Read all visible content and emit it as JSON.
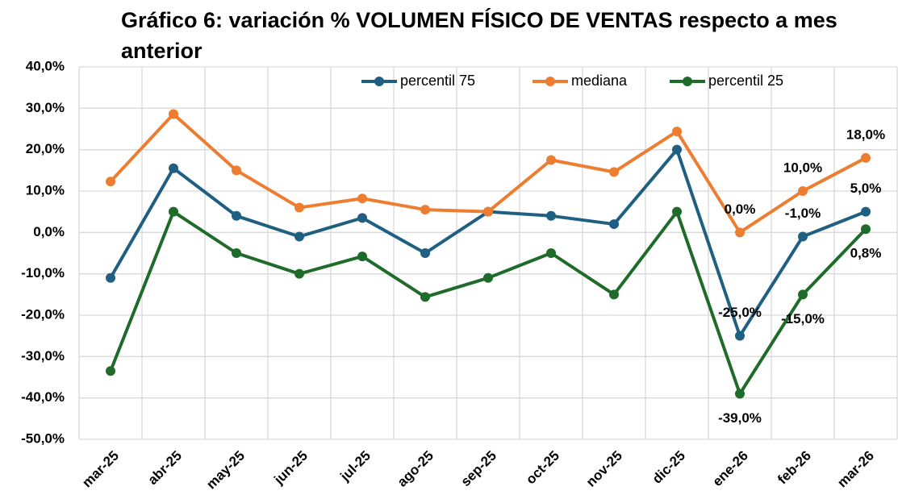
{
  "chart_data": {
    "type": "line",
    "title": "Gráfico 6: variación % VOLUMEN FÍSICO DE VENTAS respecto a mes anterior",
    "categories": [
      "mar-25",
      "abr-25",
      "may-25",
      "jun-25",
      "jul-25",
      "ago-25",
      "sep-25",
      "oct-25",
      "nov-25",
      "dic-25",
      "ene-26",
      "feb-26",
      "mar-26"
    ],
    "series": [
      {
        "name": "percentil 75",
        "color": "#1f5f82",
        "values": [
          -11,
          15.5,
          4,
          -1,
          3.5,
          -5,
          5,
          4,
          2,
          20,
          -25,
          -1,
          5
        ],
        "value_labels": [
          null,
          null,
          null,
          null,
          null,
          null,
          null,
          null,
          null,
          null,
          "-25,0%",
          "-1,0%",
          "5,0%"
        ]
      },
      {
        "name": "mediana",
        "color": "#ed7d31",
        "values": [
          12.3,
          28.6,
          15,
          6,
          8.2,
          5.5,
          5,
          17.5,
          14.6,
          24.4,
          0,
          10,
          18
        ],
        "value_labels": [
          null,
          null,
          null,
          null,
          null,
          null,
          null,
          null,
          null,
          null,
          "0,0%",
          "10,0%",
          "18,0%"
        ]
      },
      {
        "name": "percentil 25",
        "color": "#1f6b2a",
        "values": [
          -33.5,
          5,
          -5,
          -10,
          -5.8,
          -15.6,
          -11,
          -5,
          -15,
          5,
          -39,
          -15,
          0.8
        ],
        "value_labels": [
          null,
          null,
          null,
          null,
          null,
          null,
          null,
          null,
          null,
          null,
          "-39,0%",
          "-15,0%",
          "0,8%"
        ]
      }
    ],
    "ylim": [
      -50,
      40
    ],
    "yticks": [
      {
        "value": -50,
        "label": "-50,0%"
      },
      {
        "value": -40,
        "label": "-40,0%"
      },
      {
        "value": -30,
        "label": "-30,0%"
      },
      {
        "value": -20,
        "label": "-20,0%"
      },
      {
        "value": -10,
        "label": "-10,0%"
      },
      {
        "value": 0,
        "label": "0,0%"
      },
      {
        "value": 10,
        "label": "10,0%"
      },
      {
        "value": 20,
        "label": "20,0%"
      },
      {
        "value": 30,
        "label": "30,0%"
      },
      {
        "value": 40,
        "label": "40,0%"
      }
    ],
    "grid": true,
    "legend": "top"
  }
}
